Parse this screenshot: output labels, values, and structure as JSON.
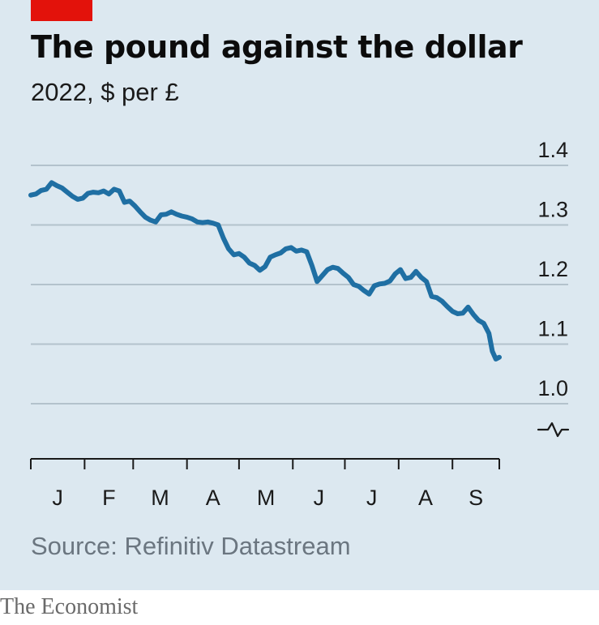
{
  "header": {
    "title": "The pound against the dollar",
    "subtitle": "2022, $ per £"
  },
  "footer": {
    "source": "Source: Refinitiv Datastream",
    "brand": "The Economist"
  },
  "colors": {
    "background": "#dce8f0",
    "line": "#1f6fa3",
    "accent_tag": "#e3120b",
    "grid": "#b3c2cc"
  },
  "chart_data": {
    "type": "line",
    "title": "The pound against the dollar",
    "subtitle": "2022, $ per £",
    "x_axis": {
      "type": "date",
      "range": [
        "2022-01-01",
        "2022-09-28"
      ],
      "tick_labels": [
        "J",
        "F",
        "M",
        "A",
        "M",
        "J",
        "J",
        "A",
        "S"
      ]
    },
    "y_axis": {
      "range": [
        1.0,
        1.4
      ],
      "tick_values": [
        1.0,
        1.1,
        1.2,
        1.3,
        1.4
      ],
      "tick_labels": [
        "1.0",
        "1.1",
        "1.2",
        "1.3",
        "1.4"
      ],
      "axis_break": true
    },
    "grid": true,
    "series": [
      {
        "points": [
          [
            "2022-01-01",
            1.35
          ],
          [
            "2022-01-04",
            1.352
          ],
          [
            "2022-01-07",
            1.358
          ],
          [
            "2022-01-10",
            1.36
          ],
          [
            "2022-01-13",
            1.371
          ],
          [
            "2022-01-16",
            1.366
          ],
          [
            "2022-01-19",
            1.362
          ],
          [
            "2022-01-22",
            1.355
          ],
          [
            "2022-01-25",
            1.348
          ],
          [
            "2022-01-28",
            1.343
          ],
          [
            "2022-01-31",
            1.345
          ],
          [
            "2022-02-03",
            1.353
          ],
          [
            "2022-02-06",
            1.355
          ],
          [
            "2022-02-09",
            1.354
          ],
          [
            "2022-02-12",
            1.357
          ],
          [
            "2022-02-15",
            1.352
          ],
          [
            "2022-02-18",
            1.36
          ],
          [
            "2022-02-21",
            1.357
          ],
          [
            "2022-02-24",
            1.338
          ],
          [
            "2022-02-27",
            1.34
          ],
          [
            "2022-03-02",
            1.332
          ],
          [
            "2022-03-05",
            1.322
          ],
          [
            "2022-03-08",
            1.313
          ],
          [
            "2022-03-11",
            1.308
          ],
          [
            "2022-03-14",
            1.305
          ],
          [
            "2022-03-17",
            1.317
          ],
          [
            "2022-03-20",
            1.318
          ],
          [
            "2022-03-23",
            1.322
          ],
          [
            "2022-03-26",
            1.318
          ],
          [
            "2022-03-29",
            1.315
          ],
          [
            "2022-04-01",
            1.313
          ],
          [
            "2022-04-04",
            1.31
          ],
          [
            "2022-04-07",
            1.305
          ],
          [
            "2022-04-10",
            1.304
          ],
          [
            "2022-04-13",
            1.305
          ],
          [
            "2022-04-16",
            1.303
          ],
          [
            "2022-04-19",
            1.3
          ],
          [
            "2022-04-22",
            1.278
          ],
          [
            "2022-04-25",
            1.26
          ],
          [
            "2022-04-28",
            1.25
          ],
          [
            "2022-05-01",
            1.252
          ],
          [
            "2022-05-04",
            1.246
          ],
          [
            "2022-05-07",
            1.236
          ],
          [
            "2022-05-10",
            1.232
          ],
          [
            "2022-05-13",
            1.224
          ],
          [
            "2022-05-16",
            1.23
          ],
          [
            "2022-05-19",
            1.246
          ],
          [
            "2022-05-22",
            1.25
          ],
          [
            "2022-05-25",
            1.253
          ],
          [
            "2022-05-28",
            1.26
          ],
          [
            "2022-05-31",
            1.262
          ],
          [
            "2022-06-03",
            1.256
          ],
          [
            "2022-06-06",
            1.258
          ],
          [
            "2022-06-09",
            1.255
          ],
          [
            "2022-06-12",
            1.232
          ],
          [
            "2022-06-15",
            1.205
          ],
          [
            "2022-06-18",
            1.215
          ],
          [
            "2022-06-21",
            1.225
          ],
          [
            "2022-06-24",
            1.229
          ],
          [
            "2022-06-27",
            1.227
          ],
          [
            "2022-06-30",
            1.219
          ],
          [
            "2022-07-03",
            1.212
          ],
          [
            "2022-07-06",
            1.2
          ],
          [
            "2022-07-09",
            1.197
          ],
          [
            "2022-07-12",
            1.19
          ],
          [
            "2022-07-15",
            1.184
          ],
          [
            "2022-07-18",
            1.198
          ],
          [
            "2022-07-21",
            1.201
          ],
          [
            "2022-07-24",
            1.202
          ],
          [
            "2022-07-27",
            1.206
          ],
          [
            "2022-07-30",
            1.218
          ],
          [
            "2022-08-02",
            1.225
          ],
          [
            "2022-08-05",
            1.21
          ],
          [
            "2022-08-08",
            1.212
          ],
          [
            "2022-08-11",
            1.222
          ],
          [
            "2022-08-14",
            1.212
          ],
          [
            "2022-08-17",
            1.205
          ],
          [
            "2022-08-20",
            1.18
          ],
          [
            "2022-08-23",
            1.178
          ],
          [
            "2022-08-26",
            1.172
          ],
          [
            "2022-08-29",
            1.163
          ],
          [
            "2022-09-01",
            1.155
          ],
          [
            "2022-09-04",
            1.151
          ],
          [
            "2022-09-07",
            1.152
          ],
          [
            "2022-09-10",
            1.162
          ],
          [
            "2022-09-13",
            1.15
          ],
          [
            "2022-09-16",
            1.14
          ],
          [
            "2022-09-19",
            1.135
          ],
          [
            "2022-09-22",
            1.118
          ],
          [
            "2022-09-24",
            1.088
          ],
          [
            "2022-09-26",
            1.075
          ],
          [
            "2022-09-28",
            1.078
          ]
        ]
      }
    ]
  }
}
